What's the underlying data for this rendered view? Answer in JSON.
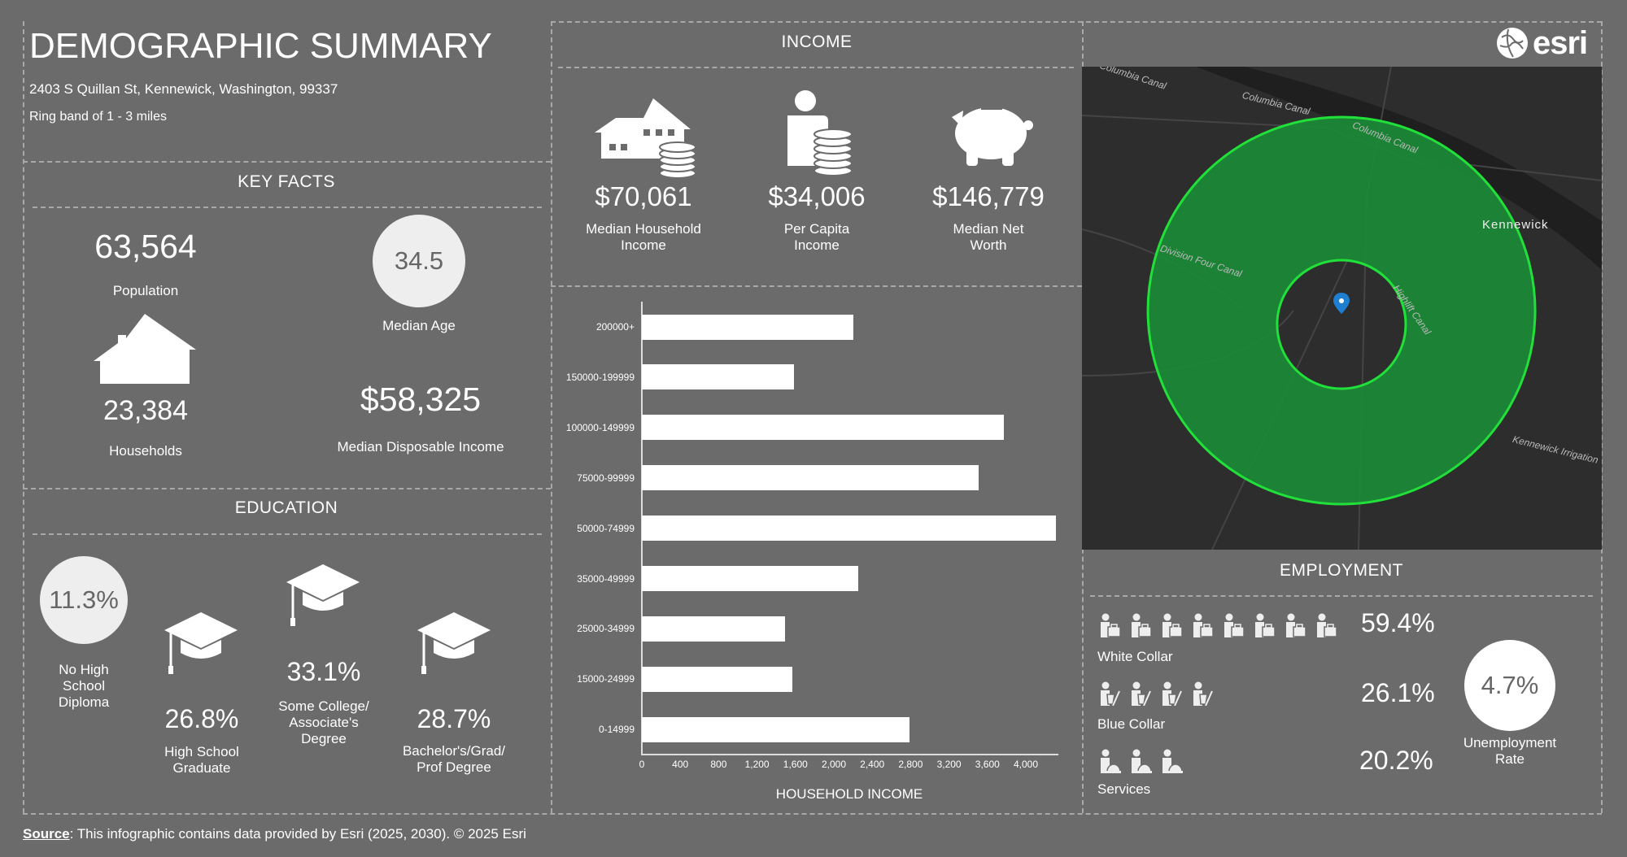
{
  "header": {
    "title": "DEMOGRAPHIC SUMMARY",
    "address": "2403 S Quillan St, Kennewick, Washington, 99337",
    "ring": "Ring band of 1 - 3 miles",
    "logo": "esri"
  },
  "key_facts": {
    "title": "KEY FACTS",
    "population": "63,564",
    "population_label": "Population",
    "median_age": "34.5",
    "median_age_label": "Median Age",
    "households": "23,384",
    "households_label": "Households",
    "disposable_income": "$58,325",
    "disposable_income_label": "Median Disposable Income"
  },
  "education": {
    "title": "EDUCATION",
    "items": [
      {
        "value": "11.3%",
        "label": "No High School Diploma"
      },
      {
        "value": "26.8%",
        "label": "High School Graduate"
      },
      {
        "value": "33.1%",
        "label": "Some College/ Associate's Degree"
      },
      {
        "value": "28.7%",
        "label": "Bachelor's/Grad/ Prof Degree"
      }
    ]
  },
  "income": {
    "title": "INCOME",
    "items": [
      {
        "value": "$70,061",
        "label": "Median Household Income",
        "icon": "house-coins-icon"
      },
      {
        "value": "$34,006",
        "label": "Per Capita Income",
        "icon": "person-coins-icon"
      },
      {
        "value": "$146,779",
        "label": "Median Net Worth",
        "icon": "piggy-bank-icon"
      }
    ]
  },
  "chart_data": {
    "type": "bar",
    "orientation": "horizontal",
    "xlabel": "HOUSEHOLD INCOME",
    "ylabel": "",
    "categories": [
      "200000+",
      "150000-199999",
      "100000-149999",
      "75000-99999",
      "50000-74999",
      "35000-49999",
      "25000-34999",
      "15000-24999",
      "0-14999"
    ],
    "values": [
      2200,
      1585,
      3770,
      3510,
      4315,
      2250,
      1490,
      1565,
      2790
    ],
    "xlim": [
      0,
      4350
    ],
    "xticks": [
      "0",
      "400",
      "800",
      "1,200",
      "1,600",
      "2,000",
      "2,400",
      "2,800",
      "3,200",
      "3,600",
      "4,000"
    ],
    "xtick_values": [
      0,
      400,
      800,
      1200,
      1600,
      2000,
      2400,
      2800,
      3200,
      3600,
      4000
    ]
  },
  "map": {
    "labels": [
      "Columbia Canal",
      "Columbia Canal",
      "Columbia Canal",
      "Division Four Canal",
      "Kennewick",
      "Highlift Canal",
      "Kennewick Irrigation"
    ],
    "ring_color": "#1b8a36",
    "ring_border": "#22e03a",
    "pin_color": "#1e7fd0"
  },
  "employment": {
    "title": "EMPLOYMENT",
    "rows": [
      {
        "label": "White Collar",
        "value": "59.4%",
        "icon_count": 8
      },
      {
        "label": "Blue Collar",
        "value": "26.1%",
        "icon_count": 4
      },
      {
        "label": "Services",
        "value": "20.2%",
        "icon_count": 3
      }
    ],
    "unemployment": "4.7%",
    "unemployment_label": "Unemployment Rate"
  },
  "footer": {
    "source_label": "Source",
    "text": ": This infographic contains data provided by Esri (2025, 2030).  © 2025 Esri"
  }
}
